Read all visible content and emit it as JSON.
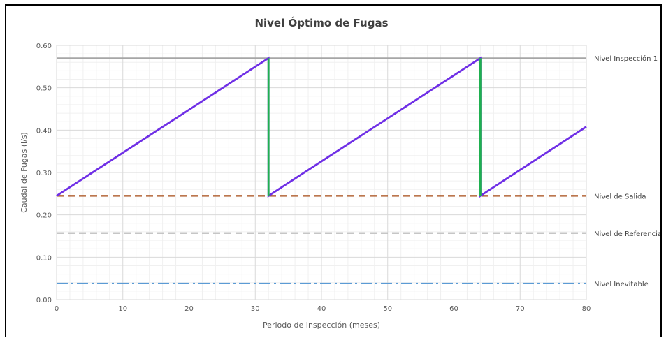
{
  "chart_data": {
    "type": "line",
    "title": "Nivel Óptimo de Fugas",
    "xlabel": "Periodo de Inspección (meses)",
    "ylabel": "Caudal de Fugas (l/s)",
    "xlim": [
      0,
      80
    ],
    "ylim": [
      0,
      0.6
    ],
    "x_ticks": [
      "0",
      "10",
      "20",
      "30",
      "40",
      "50",
      "60",
      "70",
      "80"
    ],
    "y_ticks": [
      "0.00",
      "0.10",
      "0.20",
      "0.30",
      "0.40",
      "0.50",
      "0.60"
    ],
    "grid": true,
    "series": [
      {
        "style": "solid",
        "color": "#6f2fe6",
        "points": [
          [
            0,
            0.245
          ],
          [
            32,
            0.57
          ],
          [
            32,
            0.245
          ],
          [
            64,
            0.57
          ],
          [
            64,
            0.245
          ],
          [
            80,
            0.408
          ]
        ]
      },
      {
        "style": "solid",
        "color": "#1fb050",
        "points": [
          [
            32,
            0.57
          ],
          [
            32,
            0.245
          ],
          [
            64,
            0.57
          ],
          [
            64,
            0.245
          ]
        ]
      }
    ],
    "reference_lines": [
      {
        "label": "Nivel Inspección 1",
        "y": 0.57,
        "style": "solid",
        "color": "#a6a6a6"
      },
      {
        "label": "Nivel de Salida",
        "y": 0.245,
        "style": "dashed",
        "color": "#a64a14"
      },
      {
        "label": "Nivel de Referencia",
        "y": 0.157,
        "style": "dashed",
        "color": "#bfbfbf"
      },
      {
        "label": "Nivel Inevitable",
        "y": 0.038,
        "style": "dashdot",
        "color": "#5b9bd5"
      }
    ]
  }
}
